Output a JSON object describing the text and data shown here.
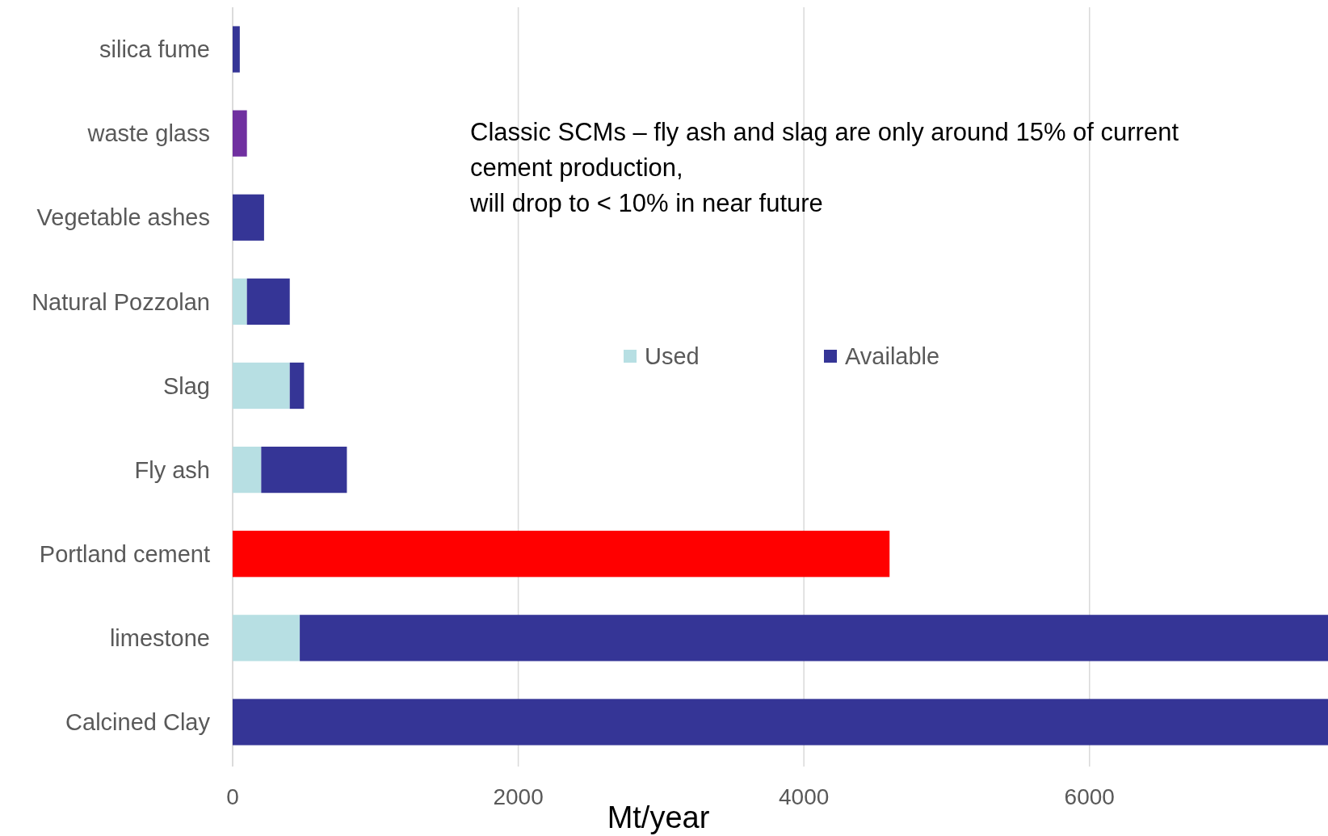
{
  "chart_data": {
    "type": "bar",
    "orientation": "horizontal",
    "stacked": true,
    "categories": [
      "silica fume",
      "waste glass",
      "Vegetable ashes",
      "Natural Pozzolan",
      "Slag",
      "Fly ash",
      "Portland cement",
      "limestone",
      "Calcined Clay"
    ],
    "series": [
      {
        "name": "Used",
        "color": "#b7dfe3",
        "values": [
          null,
          null,
          null,
          100,
          400,
          200,
          null,
          470,
          null
        ]
      },
      {
        "name": "Available",
        "color": "#353596",
        "colors": [
          "#353596",
          "#7030a0",
          "#353596",
          "#353596",
          "#353596",
          "#353596",
          "#ff0000",
          "#353596",
          "#353596"
        ],
        "values": [
          50,
          100,
          220,
          300,
          100,
          600,
          4600,
          7200,
          7670
        ]
      }
    ],
    "xlim": [
      0,
      7670
    ],
    "xticks": [
      0,
      2000,
      4000,
      6000
    ],
    "xlabel": "Mt/year",
    "grid": "x",
    "legend": "right",
    "annotations": [
      "Classic SCMs – fly ash and slag are only around 15% of current\ncement production,\nwill drop to < 10% in near future"
    ]
  }
}
